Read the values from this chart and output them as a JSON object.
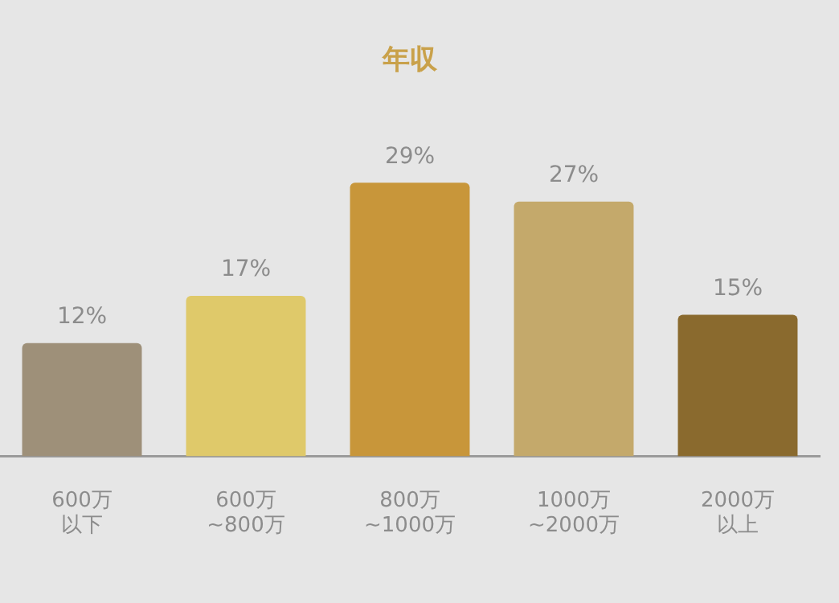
{
  "chart_data": {
    "type": "bar",
    "title": "年収",
    "categories": [
      "600万以下",
      "600万~800万",
      "800万~1000万",
      "1000万~2000万",
      "2000万以上"
    ],
    "values": [
      12,
      17,
      29,
      27,
      15
    ],
    "value_labels": [
      "12%",
      "17%",
      "29%",
      "27%",
      "15%"
    ],
    "colors": [
      "#9e9079",
      "#dfc96a",
      "#c8963a",
      "#c4a96b",
      "#8a6a2e"
    ],
    "tick_labels": "x",
    "grid": false,
    "legend": false
  }
}
